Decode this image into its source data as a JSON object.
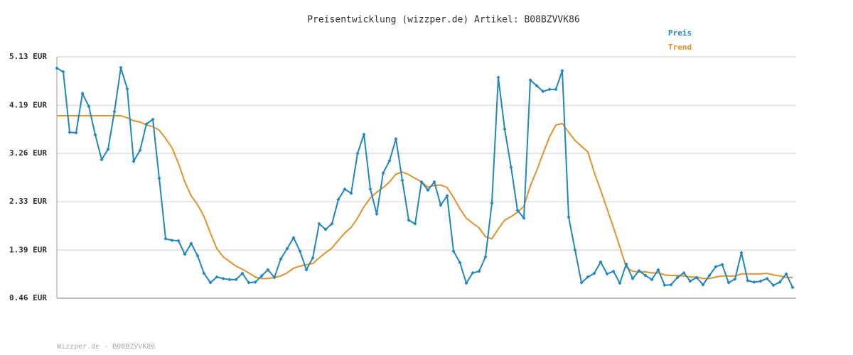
{
  "chart_data": {
    "type": "line",
    "title": "Preisentwicklung (wizzper.de) Artikel: B08BZVVK86",
    "footer": "Wizzper.de - B08BZVVK86",
    "ylim": [
      0.46,
      5.13
    ],
    "yticks": [
      {
        "value": 0.46,
        "label": "0.46 EUR"
      },
      {
        "value": 1.39,
        "label": "1.39 EUR"
      },
      {
        "value": 2.33,
        "label": "2.33 EUR"
      },
      {
        "value": 3.26,
        "label": "3.26 EUR"
      },
      {
        "value": 4.19,
        "label": "4.19 EUR"
      },
      {
        "value": 5.13,
        "label": "5.13 EUR"
      }
    ],
    "grid": true,
    "legend": "top-right",
    "series": [
      {
        "name": "Preis",
        "color": "#1f86c0",
        "markers": true,
        "values": [
          4.91,
          4.84,
          3.67,
          3.66,
          4.42,
          4.17,
          3.62,
          3.14,
          3.34,
          4.07,
          4.92,
          4.51,
          3.11,
          3.32,
          3.83,
          3.92,
          2.78,
          1.61,
          1.58,
          1.57,
          1.31,
          1.52,
          1.28,
          0.94,
          0.76,
          0.87,
          0.84,
          0.82,
          0.82,
          0.94,
          0.76,
          0.77,
          0.89,
          1.01,
          0.86,
          1.22,
          1.42,
          1.63,
          1.37,
          1.01,
          1.24,
          1.9,
          1.79,
          1.9,
          2.37,
          2.57,
          2.49,
          3.26,
          3.63,
          2.57,
          2.09,
          2.88,
          3.12,
          3.54,
          2.74,
          1.97,
          1.9,
          2.71,
          2.55,
          2.71,
          2.26,
          2.44,
          1.37,
          1.15,
          0.75,
          0.95,
          0.98,
          1.26,
          2.3,
          4.73,
          3.73,
          2.99,
          2.16,
          2.01,
          4.68,
          4.57,
          4.46,
          4.5,
          4.5,
          4.86,
          2.03,
          1.39,
          0.76,
          0.87,
          0.94,
          1.16,
          0.93,
          0.98,
          0.75,
          1.12,
          0.84,
          0.99,
          0.9,
          0.82,
          1.01,
          0.71,
          0.72,
          0.86,
          0.95,
          0.79,
          0.86,
          0.72,
          0.9,
          1.07,
          1.11,
          0.76,
          0.83,
          1.34,
          0.8,
          0.77,
          0.79,
          0.84,
          0.71,
          0.77,
          0.93,
          0.67
        ]
      },
      {
        "name": "Trend",
        "color": "#e0922e",
        "markers": false,
        "values": [
          3.99,
          3.99,
          3.99,
          3.99,
          3.99,
          3.99,
          3.99,
          3.99,
          3.99,
          3.99,
          3.99,
          3.95,
          3.89,
          3.87,
          3.81,
          3.78,
          3.71,
          3.55,
          3.37,
          3.07,
          2.71,
          2.44,
          2.27,
          2.04,
          1.72,
          1.42,
          1.26,
          1.17,
          1.08,
          1.02,
          0.95,
          0.87,
          0.84,
          0.84,
          0.86,
          0.89,
          0.95,
          1.04,
          1.08,
          1.11,
          1.13,
          1.24,
          1.34,
          1.43,
          1.58,
          1.72,
          1.83,
          2.01,
          2.23,
          2.4,
          2.51,
          2.6,
          2.71,
          2.86,
          2.9,
          2.85,
          2.78,
          2.71,
          2.61,
          2.64,
          2.65,
          2.6,
          2.41,
          2.19,
          2.01,
          1.91,
          1.82,
          1.65,
          1.61,
          1.8,
          1.97,
          2.04,
          2.12,
          2.24,
          2.63,
          2.93,
          3.26,
          3.58,
          3.81,
          3.84,
          3.67,
          3.51,
          3.4,
          3.29,
          2.89,
          2.55,
          2.19,
          1.83,
          1.45,
          1.06,
          0.98,
          0.97,
          0.97,
          0.95,
          0.95,
          0.91,
          0.9,
          0.9,
          0.89,
          0.87,
          0.87,
          0.84,
          0.84,
          0.87,
          0.89,
          0.89,
          0.89,
          0.93,
          0.93,
          0.93,
          0.93,
          0.94,
          0.91,
          0.89,
          0.86,
          0.86
        ]
      }
    ]
  }
}
